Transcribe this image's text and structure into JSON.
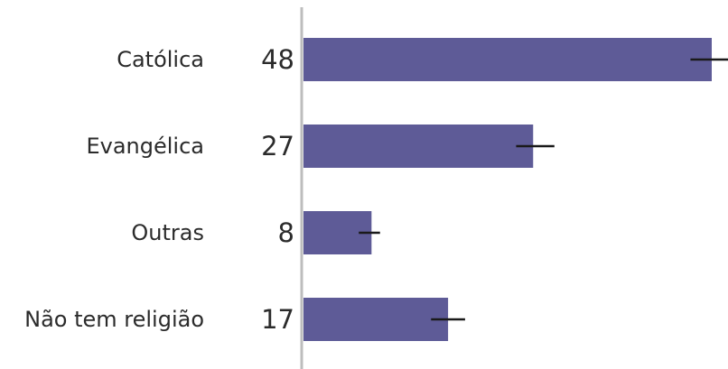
{
  "chart_data": {
    "type": "bar",
    "orientation": "horizontal",
    "categories": [
      "Católica",
      "Evangélica",
      "Outras",
      "Não tem religião"
    ],
    "values": [
      48,
      27,
      8,
      17
    ],
    "error_bars": [
      {
        "low": 45.5,
        "high": 50.5
      },
      {
        "low": 25.0,
        "high": 29.5
      },
      {
        "low": 6.5,
        "high": 9.0
      },
      {
        "low": 15.0,
        "high": 19.0
      }
    ],
    "xlim": [
      0,
      48
    ],
    "grid": false,
    "colors": {
      "bar": "#5e5b97",
      "axis": "#bdbdbd",
      "error": "#1a1a1a",
      "text": "#2b2b2b"
    }
  }
}
